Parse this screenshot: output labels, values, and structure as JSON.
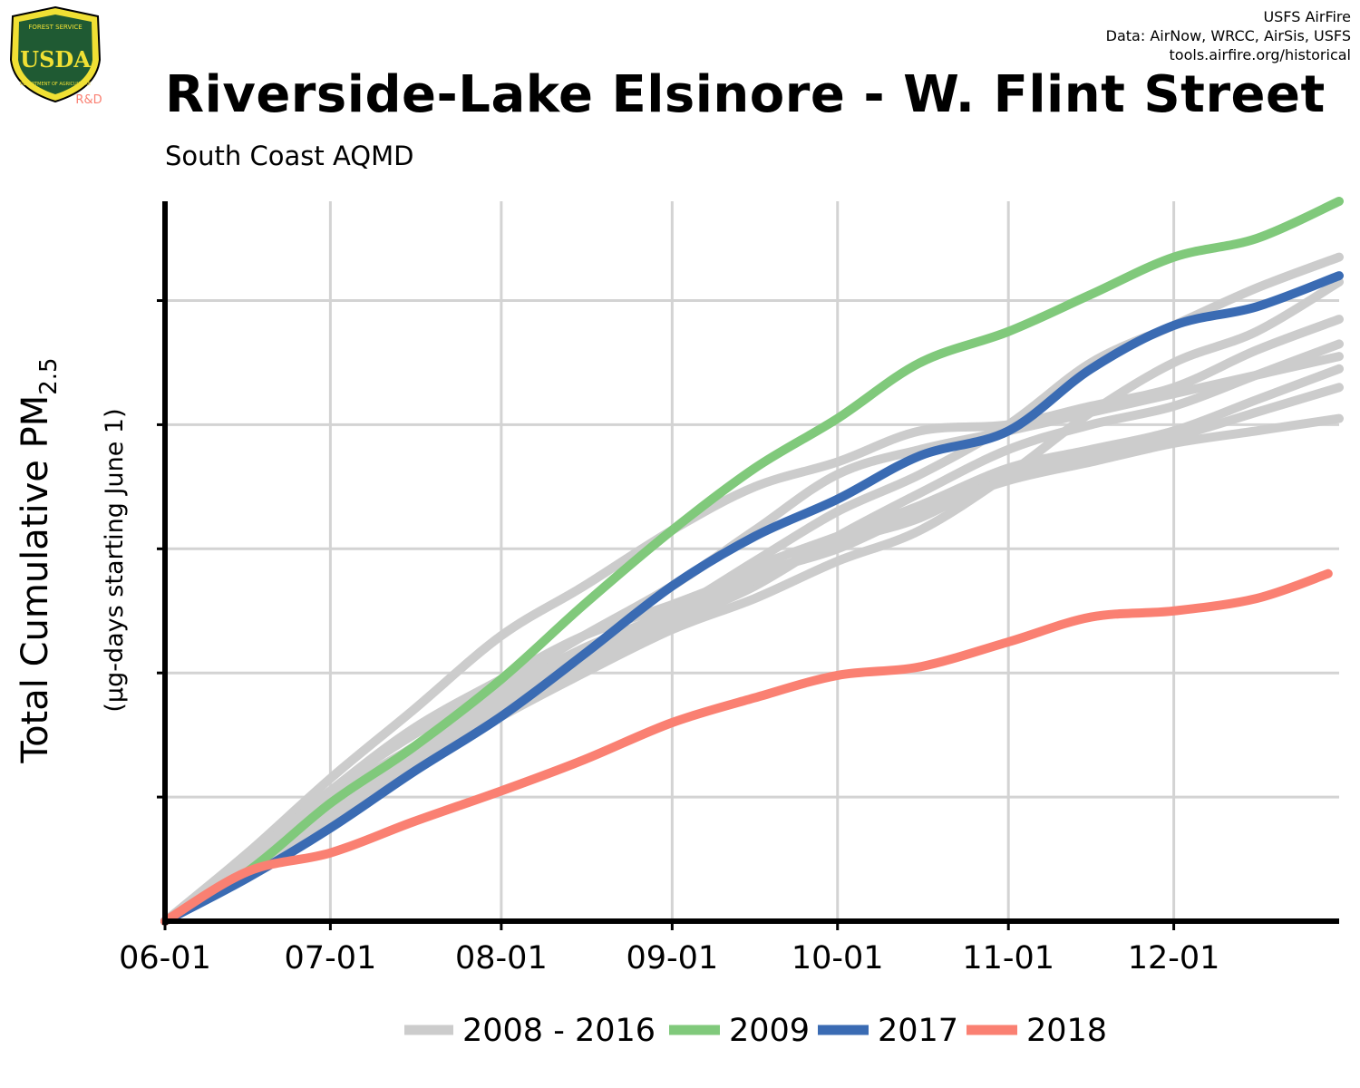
{
  "header": {
    "title": "Riverside-Lake Elsinore - W. Flint Street",
    "subtitle": "South Coast AQMD",
    "credits": [
      "USFS AirFire",
      "Data: AirNow, WRCC, AirSis, USFS",
      "tools.airfire.org/historical"
    ]
  },
  "logo": {
    "top_text": "FOREST SERVICE",
    "bottom_text": "DEPARTMENT OF AGRICULTURE",
    "letters": "USDA",
    "tag": "R&D"
  },
  "colors": {
    "historical": "#cccccc",
    "y2009": "#80c97b",
    "y2017": "#3a6bb3",
    "y2018": "#fa8072",
    "grid": "#d3d3d3",
    "axis": "#000000"
  },
  "chart_data": {
    "type": "line",
    "ylabel_main": "Total Cumulative PM",
    "ylabel_sub": "2.5",
    "ylabel_note": "(µg-days starting June 1)",
    "x_tick_labels": [
      "06-01",
      "07-01",
      "08-01",
      "09-01",
      "10-01",
      "11-01",
      "12-01"
    ],
    "x_tick_days": [
      0,
      30,
      61,
      92,
      122,
      153,
      183
    ],
    "x_range_days": [
      0,
      213
    ],
    "y_range": [
      0,
      5.8
    ],
    "y_gridlines": [
      1,
      2,
      3,
      4,
      5
    ],
    "y_tick_labels_shown": false,
    "legend": [
      {
        "label": "2008 - 2016",
        "color": "#cccccc"
      },
      {
        "label": "2009",
        "color": "#80c97b"
      },
      {
        "label": "2017",
        "color": "#3a6bb3"
      },
      {
        "label": "2018",
        "color": "#fa8072"
      }
    ],
    "series": [
      {
        "name": "2008 - 2016",
        "role": "historical",
        "x": [
          0,
          15,
          30,
          45,
          61,
          76,
          92,
          107,
          122,
          137,
          153,
          168,
          183,
          198,
          213
        ],
        "y": [
          0,
          0.55,
          1.15,
          1.7,
          2.3,
          2.7,
          3.15,
          3.5,
          3.7,
          3.95,
          4.0,
          4.15,
          4.3,
          4.6,
          4.85
        ]
      },
      {
        "name": "2008 - 2016",
        "role": "historical",
        "x": [
          0,
          15,
          30,
          45,
          61,
          76,
          92,
          107,
          122,
          137,
          153,
          168,
          183,
          198,
          213
        ],
        "y": [
          0,
          0.5,
          1.0,
          1.4,
          1.85,
          2.2,
          2.5,
          2.9,
          3.3,
          3.6,
          4.0,
          4.5,
          4.8,
          5.1,
          5.35
        ]
      },
      {
        "name": "2008 - 2016",
        "role": "historical",
        "x": [
          0,
          15,
          30,
          45,
          61,
          76,
          92,
          107,
          122,
          137,
          153,
          168,
          183,
          198,
          213
        ],
        "y": [
          0,
          0.4,
          0.85,
          1.3,
          1.7,
          2.05,
          2.4,
          2.7,
          3.1,
          3.45,
          3.8,
          4.0,
          4.15,
          4.4,
          4.65
        ]
      },
      {
        "name": "2008 - 2016",
        "role": "historical",
        "x": [
          0,
          15,
          30,
          45,
          61,
          76,
          92,
          107,
          122,
          137,
          153,
          168,
          183,
          198,
          213
        ],
        "y": [
          0,
          0.45,
          0.9,
          1.35,
          1.75,
          2.1,
          2.45,
          2.75,
          3.05,
          3.25,
          3.6,
          3.75,
          3.9,
          4.1,
          4.3
        ]
      },
      {
        "name": "2008 - 2016",
        "role": "historical",
        "x": [
          0,
          15,
          30,
          45,
          61,
          76,
          92,
          107,
          122,
          137,
          153,
          168,
          183,
          198,
          213
        ],
        "y": [
          0,
          0.45,
          0.95,
          1.4,
          1.8,
          2.15,
          2.5,
          2.85,
          3.1,
          3.35,
          3.65,
          3.8,
          3.95,
          4.2,
          4.45
        ]
      },
      {
        "name": "2008 - 2016",
        "role": "historical",
        "x": [
          0,
          15,
          30,
          45,
          61,
          76,
          92,
          107,
          122,
          137,
          153,
          168,
          183,
          198,
          213
        ],
        "y": [
          0,
          0.5,
          1.05,
          1.5,
          1.9,
          2.3,
          2.7,
          3.15,
          3.6,
          3.8,
          3.95,
          4.1,
          4.25,
          4.4,
          4.55
        ]
      },
      {
        "name": "2008 - 2016",
        "role": "historical",
        "x": [
          0,
          15,
          30,
          45,
          61,
          76,
          92,
          107,
          122,
          137,
          153,
          168,
          183,
          198,
          213
        ],
        "y": [
          0,
          0.5,
          1.05,
          1.55,
          1.95,
          2.3,
          2.55,
          2.8,
          3.0,
          3.3,
          3.55,
          3.7,
          3.85,
          3.95,
          4.05
        ]
      },
      {
        "name": "2008 - 2016",
        "role": "historical",
        "x": [
          0,
          15,
          30,
          45,
          61,
          76,
          92,
          107,
          122,
          137,
          153,
          168,
          183,
          198,
          213
        ],
        "y": [
          0,
          0.4,
          0.8,
          1.25,
          1.65,
          2.0,
          2.35,
          2.6,
          2.9,
          3.15,
          3.6,
          4.1,
          4.5,
          4.75,
          5.15
        ]
      },
      {
        "name": "2009",
        "x": [
          0,
          15,
          30,
          45,
          61,
          76,
          92,
          107,
          122,
          137,
          153,
          168,
          183,
          198,
          213
        ],
        "y": [
          0,
          0.4,
          0.95,
          1.4,
          1.95,
          2.55,
          3.15,
          3.65,
          4.05,
          4.5,
          4.75,
          5.05,
          5.35,
          5.5,
          5.8
        ]
      },
      {
        "name": "2017",
        "x": [
          0,
          15,
          30,
          45,
          61,
          76,
          92,
          107,
          122,
          137,
          153,
          168,
          183,
          198,
          213
        ],
        "y": [
          0,
          0.35,
          0.75,
          1.2,
          1.65,
          2.15,
          2.7,
          3.1,
          3.4,
          3.75,
          3.95,
          4.45,
          4.8,
          4.95,
          5.2
        ]
      },
      {
        "name": "2018",
        "x": [
          0,
          15,
          30,
          45,
          61,
          76,
          92,
          107,
          122,
          137,
          153,
          168,
          183,
          198,
          211
        ],
        "y": [
          0,
          0.4,
          0.55,
          0.8,
          1.05,
          1.3,
          1.6,
          1.8,
          1.98,
          2.05,
          2.25,
          2.45,
          2.5,
          2.6,
          2.8
        ]
      }
    ]
  }
}
